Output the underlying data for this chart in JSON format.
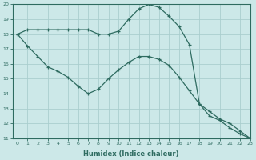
{
  "xlabel": "Humidex (Indice chaleur)",
  "ylabel": "",
  "bg_color": "#cce8e8",
  "grid_color": "#aacece",
  "line_color": "#2e6b60",
  "line1_x": [
    0,
    1,
    2,
    3,
    4,
    5,
    6,
    7,
    8,
    9,
    10,
    11,
    12,
    13,
    14,
    15,
    16,
    17,
    18,
    19,
    20,
    21,
    22,
    23
  ],
  "line1_y": [
    18.0,
    18.3,
    18.3,
    18.3,
    18.3,
    18.3,
    18.3,
    18.3,
    18.0,
    18.0,
    18.2,
    19.0,
    19.7,
    20.0,
    19.8,
    19.2,
    18.5,
    17.3,
    13.3,
    12.5,
    12.2,
    11.7,
    11.3,
    11.0
  ],
  "line2_x": [
    0,
    1,
    2,
    3,
    4,
    5,
    6,
    7,
    8,
    9,
    10,
    11,
    12,
    13,
    14,
    15,
    16,
    17,
    18,
    19,
    20,
    21,
    22,
    23
  ],
  "line2_y": [
    18.0,
    17.2,
    16.5,
    15.8,
    15.5,
    15.1,
    14.5,
    14.0,
    14.3,
    15.0,
    15.6,
    16.1,
    16.5,
    16.5,
    16.3,
    15.9,
    15.1,
    14.2,
    13.3,
    12.8,
    12.3,
    12.0,
    11.5,
    11.0
  ],
  "xlim": [
    -0.5,
    23
  ],
  "ylim": [
    11,
    20
  ],
  "xtick_labels": [
    "0",
    "1",
    "2",
    "3",
    "4",
    "5",
    "6",
    "7",
    "8",
    "9",
    "10",
    "11",
    "12",
    "13",
    "14",
    "15",
    "16",
    "17",
    "18",
    "19",
    "20",
    "21",
    "22",
    "23"
  ],
  "ytick_vals": [
    11,
    12,
    13,
    14,
    15,
    16,
    17,
    18,
    19,
    20
  ],
  "ytick_labels": [
    "11",
    "12",
    "13",
    "14",
    "15",
    "16",
    "17",
    "18",
    "19",
    "20"
  ]
}
